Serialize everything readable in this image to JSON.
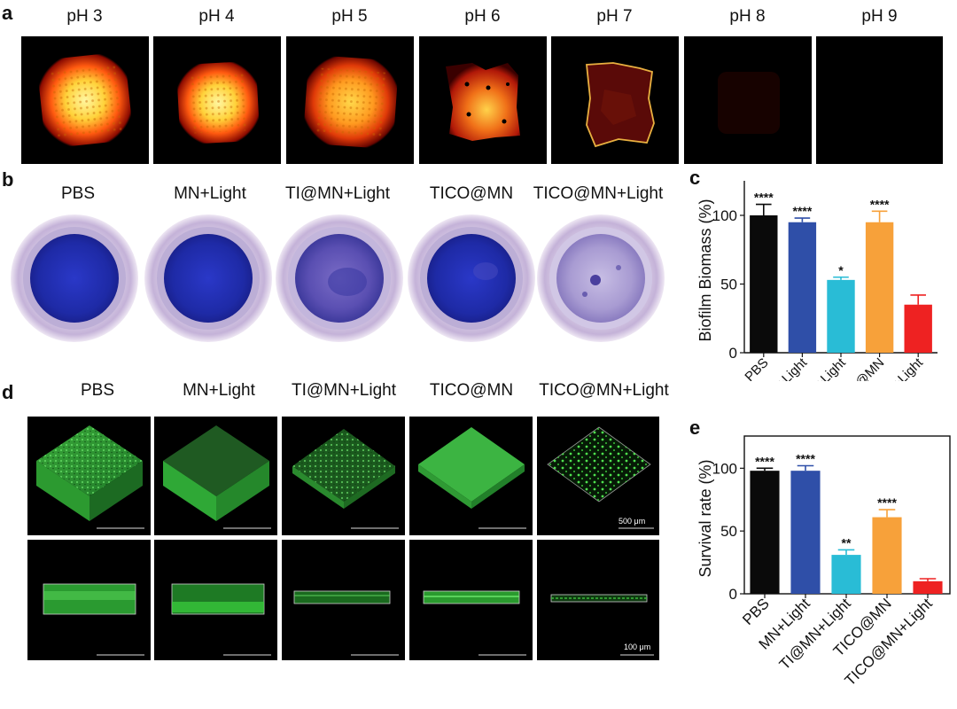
{
  "panels": {
    "a": "a",
    "b": "b",
    "c": "c",
    "d": "d",
    "e": "e"
  },
  "panel_a": {
    "labels": [
      "pH 3",
      "pH 4",
      "pH 5",
      "pH 6",
      "pH 7",
      "pH 8",
      "pH 9"
    ]
  },
  "panel_b": {
    "labels": [
      "PBS",
      "MN+Light",
      "TI@MN+Light",
      "TICO@MN",
      "TICO@MN+Light"
    ]
  },
  "panel_d": {
    "labels": [
      "PBS",
      "MN+Light",
      "TI@MN+Light",
      "TICO@MN",
      "TICO@MN+Light"
    ],
    "scale_top": "500 μm",
    "scale_bottom": "100 μm"
  },
  "chart_data": [
    {
      "type": "bar",
      "panel": "c",
      "ylabel": "Biofilm Biomass (%)",
      "categories": [
        "PBS",
        "MN+Light",
        "TI@MN+Light",
        "TICO@MN",
        "TICO@MN+Light"
      ],
      "values": [
        100,
        95,
        53,
        95,
        35
      ],
      "errors": [
        8,
        3,
        2,
        8,
        7
      ],
      "significance": [
        "****",
        "****",
        "*",
        "****",
        ""
      ],
      "colors": [
        "#0a0a0a",
        "#2f4fa8",
        "#29bcd6",
        "#f7a13a",
        "#ee2222"
      ],
      "ylim": [
        0,
        120
      ],
      "yticks": [
        0,
        50,
        100
      ]
    },
    {
      "type": "bar",
      "panel": "e",
      "ylabel": "Survival rate (%)",
      "categories": [
        "PBS",
        "MN+Light",
        "TI@MN+Light",
        "TICO@MN",
        "TICO@MN+Light"
      ],
      "values": [
        98,
        98,
        31,
        61,
        10
      ],
      "errors": [
        2,
        4,
        4,
        6,
        2
      ],
      "significance": [
        "****",
        "****",
        "**",
        "****",
        ""
      ],
      "colors": [
        "#0a0a0a",
        "#2f4fa8",
        "#29bcd6",
        "#f7a13a",
        "#ee2222"
      ],
      "ylim": [
        0,
        120
      ],
      "yticks": [
        0,
        50,
        100
      ]
    }
  ]
}
